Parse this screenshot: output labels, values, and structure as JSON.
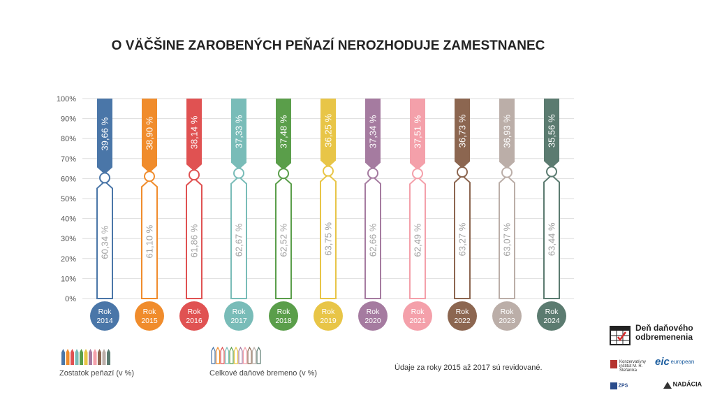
{
  "chart_data": {
    "type": "bar",
    "title": "O VÄČŠINE ZAROBENÝCH PEŇAZÍ NEROZHODUJE ZAMESTNANEC",
    "categories": [
      "Rok\n2014",
      "Rok\n2015",
      "Rok\n2016",
      "Rok\n2017",
      "Rok\n2018",
      "Rok\n2019",
      "Rok\n2020",
      "Rok\n2021",
      "Rok\n2022",
      "Rok\n2023",
      "Rok\n2024"
    ],
    "series": [
      {
        "name": "Zostatok peňazí (v %)",
        "values": [
          60.34,
          61.1,
          61.86,
          62.67,
          62.52,
          63.75,
          62.66,
          62.49,
          63.27,
          63.07,
          63.44
        ],
        "labels": [
          "60,34 %",
          "61,10 %",
          "61,86 %",
          "62,67 %",
          "62,52 %",
          "63,75 %",
          "62,66 %",
          "62,49 %",
          "63,27 %",
          "63,07 %",
          "63,44 %"
        ]
      },
      {
        "name": "Celkové daňové bremeno (v %)",
        "values": [
          39.66,
          38.9,
          38.14,
          37.33,
          37.48,
          36.25,
          37.34,
          37.51,
          36.73,
          36.93,
          35.56
        ],
        "labels": [
          "39,66 %",
          "38,90 %",
          "38,14 %",
          "37,33 %",
          "37,48 %",
          "36,25 %",
          "37,34 %",
          "37,51 %",
          "36,73 %",
          "36,93 %",
          "35,56 %"
        ]
      }
    ],
    "colors": [
      "#4a76a8",
      "#f08c2c",
      "#e05252",
      "#79bcb8",
      "#5a9e4a",
      "#e8c547",
      "#a57ba0",
      "#f4a0aa",
      "#8c6650",
      "#bbaea8",
      "#5b7b70"
    ],
    "ylim": [
      0,
      100
    ],
    "yticks": [
      "0%",
      "10%",
      "20%",
      "30%",
      "40%",
      "50%",
      "60%",
      "70%",
      "80%",
      "90%",
      "100%"
    ],
    "grid": true,
    "stacked": true
  },
  "legend": {
    "remainder": "Zostatok peňazí (v %)",
    "burden": "Celkové daňové bremeno (v %)"
  },
  "note": "Údaje za roky 2015 až 2017 sú revidované.",
  "logos": {
    "main": "Deň daňového odbremenenia",
    "kons": "Konzervatívny inštitút M. R. Štefánika",
    "eic": "eic",
    "eic_sub": "european",
    "zps": "ZPS",
    "nadacia": "NADÁCIA"
  }
}
